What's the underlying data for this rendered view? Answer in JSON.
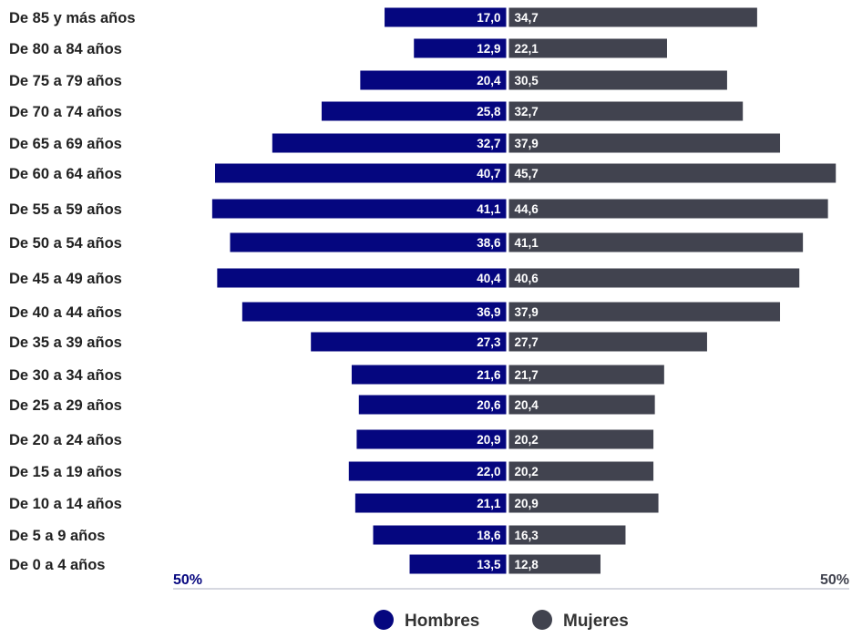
{
  "chart_data": {
    "type": "bar",
    "orientation": "horizontal-butterfly",
    "categories": [
      "De 85 y más años",
      "De 80 a 84 años",
      "De 75 a 79 años",
      "De 70 a 74 años",
      "De 65 a 69 años",
      "De 60 a 64 años",
      "De 55 a 59 años",
      "De 50 a 54 años",
      "De 45 a 49 años",
      "De 40 a 44 años",
      "De 35 a 39 años",
      "De 30 a 34 años",
      "De 25 a 29 años",
      "De 20 a 24 años",
      "De 15 a 19 años",
      "De 10 a 14 años",
      "De 5 a 9 años",
      "De 0 a 4 años"
    ],
    "series": [
      {
        "name": "Hombres",
        "side": "left",
        "color": "#05067f",
        "values": [
          17.0,
          12.9,
          20.4,
          25.8,
          32.7,
          40.7,
          41.1,
          38.6,
          40.4,
          36.9,
          27.3,
          21.6,
          20.6,
          20.9,
          22.0,
          21.1,
          18.6,
          13.5
        ],
        "labels": [
          "17,0",
          "12,9",
          "20,4",
          "25,8",
          "32,7",
          "40,7",
          "41,1",
          "38,6",
          "40,4",
          "36,9",
          "27,3",
          "21,6",
          "20,6",
          "20,9",
          "22,0",
          "21,1",
          "18,6",
          "13,5"
        ]
      },
      {
        "name": "Mujeres",
        "side": "right",
        "color": "#41434f",
        "values": [
          34.7,
          22.1,
          30.5,
          32.7,
          37.9,
          45.7,
          44.6,
          41.1,
          40.6,
          37.9,
          27.7,
          21.7,
          20.4,
          20.2,
          20.2,
          20.9,
          16.3,
          12.8
        ],
        "labels": [
          "34,7",
          "22,1",
          "30,5",
          "32,7",
          "37,9",
          "45,7",
          "44,6",
          "41,1",
          "40,6",
          "37,9",
          "27,7",
          "21,7",
          "20,4",
          "20,2",
          "20,2",
          "20,9",
          "16,3",
          "12,8"
        ]
      }
    ],
    "axis": {
      "min_label": "50%",
      "max_label": "50%",
      "range": [
        -50,
        50
      ]
    },
    "legend": {
      "placement": "bottom-center",
      "items": [
        "Hombres",
        "Mujeres"
      ]
    },
    "colors": {
      "hombres": "#05067f",
      "mujeres": "#41434f",
      "axis_line": "#c9ccd6",
      "axis_label_left": "#05067f",
      "axis_label_right": "#41434f",
      "category_text": "#222222"
    }
  }
}
